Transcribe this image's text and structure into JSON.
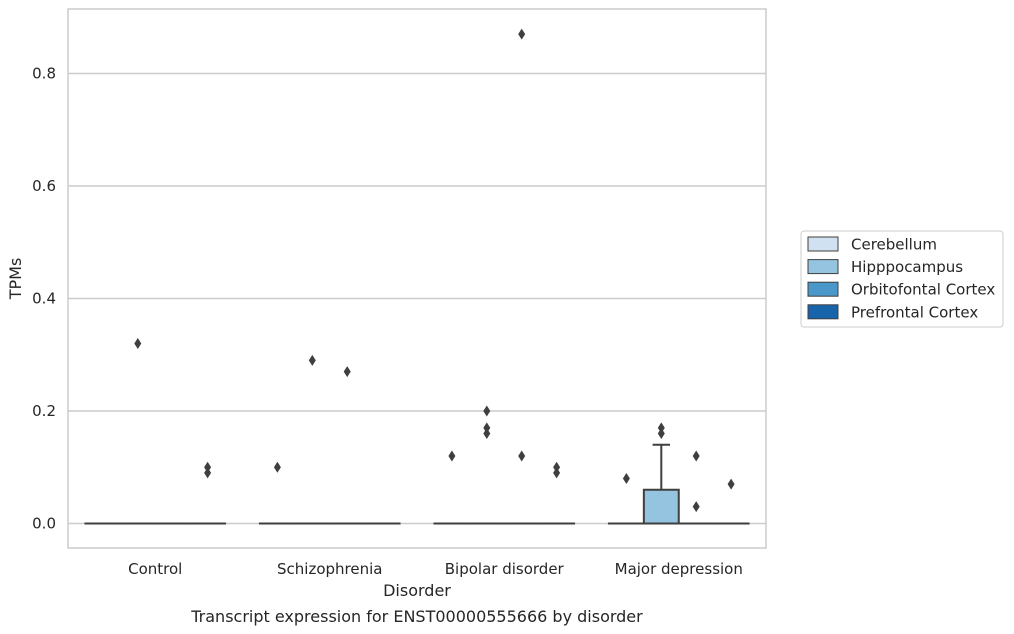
{
  "chart_data": {
    "type": "box",
    "title": "",
    "caption": "Transcript expression for ENST00000555666 by disorder",
    "xlabel": "Disorder",
    "ylabel": "TPMs",
    "ylim": [
      -0.043,
      0.915
    ],
    "yticks": [
      0.0,
      0.2,
      0.4,
      0.6,
      0.8
    ],
    "ytick_labels": [
      "0.0",
      "0.2",
      "0.4",
      "0.6",
      "0.8"
    ],
    "grid": "horizontal",
    "legend_position": "right",
    "categories": [
      "Control",
      "Schizophrenia",
      "Bipolar disorder",
      "Major depression"
    ],
    "series": [
      {
        "name": "Cerebellum",
        "color": "#d0e1f2"
      },
      {
        "name": "Hipppocampus",
        "color": "#94c4df"
      },
      {
        "name": "Orbitofontal Cortex",
        "color": "#4a98c9"
      },
      {
        "name": "Prefrontal Cortex",
        "color": "#1764ab"
      }
    ],
    "boxes": [
      {
        "category": "Control",
        "series": "Cerebellum",
        "q1": 0,
        "median": 0,
        "q3": 0,
        "whisker_low": 0,
        "whisker_high": 0,
        "outliers": []
      },
      {
        "category": "Control",
        "series": "Hipppocampus",
        "q1": 0,
        "median": 0,
        "q3": 0,
        "whisker_low": 0,
        "whisker_high": 0,
        "outliers": [
          0.32
        ]
      },
      {
        "category": "Control",
        "series": "Orbitofontal Cortex",
        "q1": 0,
        "median": 0,
        "q3": 0,
        "whisker_low": 0,
        "whisker_high": 0,
        "outliers": []
      },
      {
        "category": "Control",
        "series": "Prefrontal Cortex",
        "q1": 0,
        "median": 0,
        "q3": 0,
        "whisker_low": 0,
        "whisker_high": 0,
        "outliers": [
          0.1,
          0.09
        ]
      },
      {
        "category": "Schizophrenia",
        "series": "Cerebellum",
        "q1": 0,
        "median": 0,
        "q3": 0,
        "whisker_low": 0,
        "whisker_high": 0,
        "outliers": [
          0.1
        ]
      },
      {
        "category": "Schizophrenia",
        "series": "Hipppocampus",
        "q1": 0,
        "median": 0,
        "q3": 0,
        "whisker_low": 0,
        "whisker_high": 0,
        "outliers": [
          0.29
        ]
      },
      {
        "category": "Schizophrenia",
        "series": "Orbitofontal Cortex",
        "q1": 0,
        "median": 0,
        "q3": 0,
        "whisker_low": 0,
        "whisker_high": 0,
        "outliers": [
          0.27
        ]
      },
      {
        "category": "Schizophrenia",
        "series": "Prefrontal Cortex",
        "q1": 0,
        "median": 0,
        "q3": 0,
        "whisker_low": 0,
        "whisker_high": 0,
        "outliers": []
      },
      {
        "category": "Bipolar disorder",
        "series": "Cerebellum",
        "q1": 0,
        "median": 0,
        "q3": 0,
        "whisker_low": 0,
        "whisker_high": 0,
        "outliers": [
          0.12
        ]
      },
      {
        "category": "Bipolar disorder",
        "series": "Hipppocampus",
        "q1": 0,
        "median": 0,
        "q3": 0,
        "whisker_low": 0,
        "whisker_high": 0,
        "outliers": [
          0.2,
          0.17,
          0.16
        ]
      },
      {
        "category": "Bipolar disorder",
        "series": "Orbitofontal Cortex",
        "q1": 0,
        "median": 0,
        "q3": 0,
        "whisker_low": 0,
        "whisker_high": 0,
        "outliers": [
          0.87,
          0.12
        ]
      },
      {
        "category": "Bipolar disorder",
        "series": "Prefrontal Cortex",
        "q1": 0,
        "median": 0,
        "q3": 0,
        "whisker_low": 0,
        "whisker_high": 0,
        "outliers": [
          0.1,
          0.09
        ]
      },
      {
        "category": "Major depression",
        "series": "Cerebellum",
        "q1": 0,
        "median": 0,
        "q3": 0,
        "whisker_low": 0,
        "whisker_high": 0,
        "outliers": [
          0.08
        ]
      },
      {
        "category": "Major depression",
        "series": "Hipppocampus",
        "q1": 0,
        "median": 0,
        "q3": 0.06,
        "whisker_low": 0,
        "whisker_high": 0.14,
        "outliers": [
          0.17,
          0.16
        ]
      },
      {
        "category": "Major depression",
        "series": "Orbitofontal Cortex",
        "q1": 0,
        "median": 0,
        "q3": 0,
        "whisker_low": 0,
        "whisker_high": 0,
        "outliers": [
          0.12,
          0.03
        ]
      },
      {
        "category": "Major depression",
        "series": "Prefrontal Cortex",
        "q1": 0,
        "median": 0,
        "q3": 0,
        "whisker_low": 0,
        "whisker_high": 0,
        "outliers": [
          0.07
        ]
      }
    ]
  }
}
